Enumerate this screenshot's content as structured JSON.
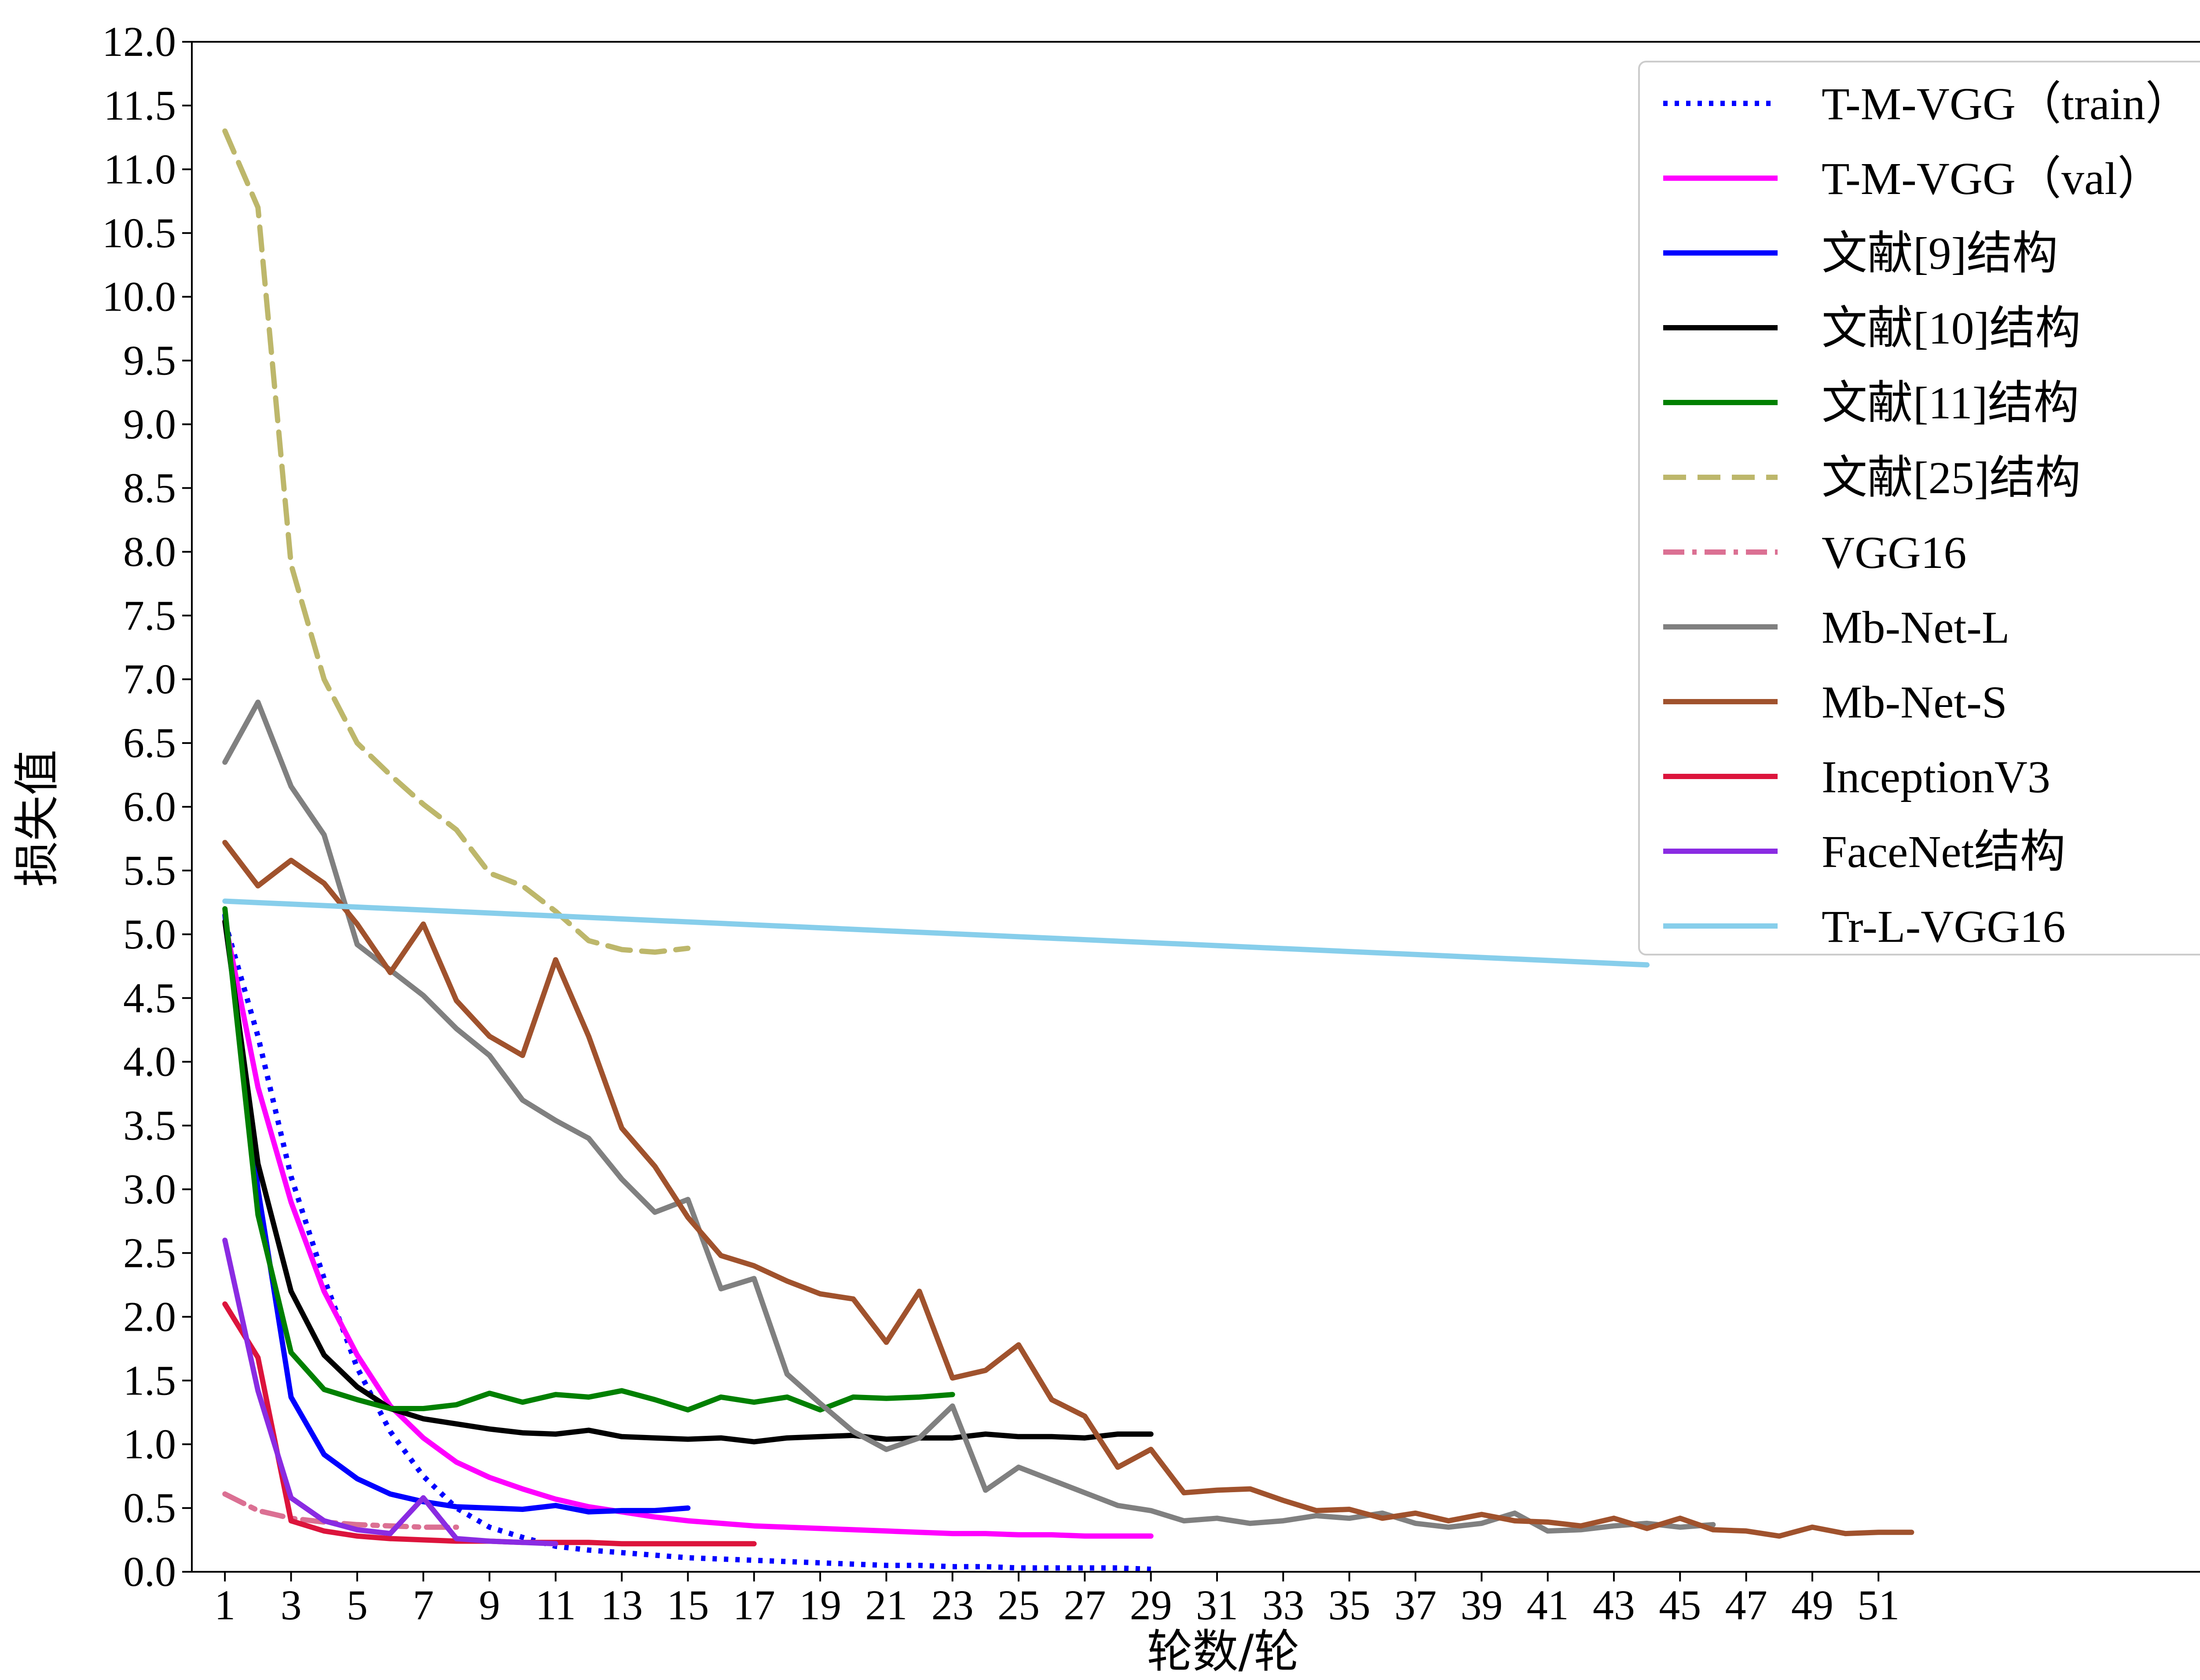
{
  "chart_data": {
    "type": "line",
    "title": "",
    "xlabel": "轮数/轮",
    "ylabel": "损失值",
    "xlim": [
      0,
      62
    ],
    "ylim": [
      0,
      12
    ],
    "xticks": [
      1,
      3,
      5,
      7,
      9,
      11,
      13,
      15,
      17,
      19,
      21,
      23,
      25,
      27,
      29,
      31,
      33,
      35,
      37,
      39,
      41,
      43,
      45,
      47,
      49,
      51
    ],
    "yticks": [
      "0.0",
      "0.5",
      "1.0",
      "1.5",
      "2.0",
      "2.5",
      "3.0",
      "3.5",
      "4.0",
      "4.5",
      "5.0",
      "5.5",
      "6.0",
      "6.5",
      "7.0",
      "7.5",
      "8.0",
      "8.5",
      "9.0",
      "9.5",
      "10.0",
      "10.5",
      "11.0",
      "11.5",
      "12.0"
    ],
    "grid": false,
    "legend_position": "top-right",
    "series": [
      {
        "name": "T-M-VGG（train）",
        "color": "#0000ff",
        "style": "dotted",
        "x": [
          1,
          2,
          3,
          4,
          5,
          6,
          7,
          8,
          9,
          10,
          11,
          12,
          13,
          14,
          15,
          16,
          17,
          18,
          19,
          20,
          21,
          22,
          23,
          24,
          25,
          26,
          27,
          28,
          29
        ],
        "y": [
          5.1,
          4.2,
          3.1,
          2.3,
          1.6,
          1.1,
          0.75,
          0.5,
          0.35,
          0.27,
          0.2,
          0.17,
          0.15,
          0.13,
          0.11,
          0.1,
          0.09,
          0.08,
          0.07,
          0.06,
          0.05,
          0.05,
          0.04,
          0.04,
          0.03,
          0.03,
          0.03,
          0.03,
          0.02
        ]
      },
      {
        "name": "T-M-VGG（val）",
        "color": "#ff00ff",
        "style": "solid",
        "x": [
          1,
          2,
          3,
          4,
          5,
          6,
          7,
          8,
          9,
          10,
          11,
          12,
          13,
          14,
          15,
          16,
          17,
          18,
          19,
          20,
          21,
          22,
          23,
          24,
          25,
          26,
          27,
          28,
          29
        ],
        "y": [
          5.1,
          3.8,
          2.9,
          2.2,
          1.7,
          1.3,
          1.05,
          0.86,
          0.74,
          0.65,
          0.57,
          0.51,
          0.47,
          0.43,
          0.4,
          0.38,
          0.36,
          0.35,
          0.34,
          0.33,
          0.32,
          0.31,
          0.3,
          0.3,
          0.29,
          0.29,
          0.28,
          0.28,
          0.28
        ]
      },
      {
        "name": "文献[9]结构",
        "color": "#0000ff",
        "style": "solid",
        "x": [
          1,
          2,
          3,
          4,
          5,
          6,
          7,
          8,
          9,
          10,
          11,
          12,
          13,
          14,
          15
        ],
        "y": [
          5.15,
          3.0,
          1.37,
          0.92,
          0.73,
          0.61,
          0.55,
          0.51,
          0.5,
          0.49,
          0.52,
          0.47,
          0.48,
          0.48,
          0.5
        ]
      },
      {
        "name": "文献[10]结构",
        "color": "#000000",
        "style": "solid",
        "x": [
          1,
          2,
          3,
          4,
          5,
          6,
          7,
          8,
          9,
          10,
          11,
          12,
          13,
          14,
          15,
          16,
          17,
          18,
          19,
          20,
          21,
          22,
          23,
          24,
          25,
          26,
          27,
          28,
          29
        ],
        "y": [
          5.1,
          3.2,
          2.2,
          1.7,
          1.45,
          1.28,
          1.2,
          1.16,
          1.12,
          1.09,
          1.08,
          1.11,
          1.06,
          1.05,
          1.04,
          1.05,
          1.02,
          1.05,
          1.06,
          1.07,
          1.04,
          1.05,
          1.05,
          1.08,
          1.06,
          1.06,
          1.05,
          1.08,
          1.08
        ]
      },
      {
        "name": "文献[11]结构",
        "color": "#008000",
        "style": "solid",
        "x": [
          1,
          2,
          3,
          4,
          5,
          6,
          7,
          8,
          9,
          10,
          11,
          12,
          13,
          14,
          15,
          16,
          17,
          18,
          19,
          20,
          21,
          22,
          23
        ],
        "y": [
          5.2,
          2.8,
          1.72,
          1.43,
          1.35,
          1.28,
          1.28,
          1.31,
          1.4,
          1.33,
          1.39,
          1.37,
          1.42,
          1.35,
          1.27,
          1.37,
          1.33,
          1.37,
          1.27,
          1.37,
          1.36,
          1.37,
          1.39
        ]
      },
      {
        "name": "文献[25]结构",
        "color": "#bdb76b",
        "style": "dashed",
        "x": [
          1,
          2,
          3,
          4,
          5,
          6,
          7,
          8,
          9,
          10,
          11,
          12,
          13,
          14,
          15
        ],
        "y": [
          11.3,
          10.7,
          7.9,
          7.0,
          6.5,
          6.25,
          6.02,
          5.82,
          5.48,
          5.38,
          5.18,
          4.95,
          4.88,
          4.86,
          4.89
        ]
      },
      {
        "name": "VGG16",
        "color": "#db7093",
        "style": "dashdot",
        "x": [
          1,
          2,
          3,
          4,
          5,
          6,
          7,
          8
        ],
        "y": [
          0.61,
          0.48,
          0.42,
          0.39,
          0.37,
          0.36,
          0.35,
          0.35
        ]
      },
      {
        "name": "Mb-Net-L",
        "color": "#808080",
        "style": "solid",
        "x": [
          1,
          2,
          3,
          4,
          5,
          6,
          7,
          8,
          9,
          10,
          11,
          12,
          13,
          14,
          15,
          16,
          17,
          18,
          19,
          20,
          21,
          22,
          23,
          24,
          25,
          26,
          27,
          28,
          29,
          30,
          31,
          32,
          33,
          34,
          35,
          36,
          37,
          38,
          39,
          40,
          41,
          42,
          43,
          44,
          45,
          46
        ],
        "y": [
          6.35,
          6.82,
          6.16,
          5.78,
          4.92,
          4.72,
          4.52,
          4.26,
          4.05,
          3.7,
          3.54,
          3.4,
          3.08,
          2.82,
          2.92,
          2.22,
          2.3,
          1.55,
          1.32,
          1.1,
          0.96,
          1.05,
          1.3,
          0.64,
          0.82,
          0.72,
          0.62,
          0.52,
          0.48,
          0.4,
          0.42,
          0.38,
          0.4,
          0.44,
          0.42,
          0.46,
          0.38,
          0.35,
          0.38,
          0.46,
          0.32,
          0.33,
          0.36,
          0.38,
          0.35,
          0.37
        ]
      },
      {
        "name": "Mb-Net-S",
        "color": "#a0522d",
        "style": "solid",
        "x": [
          1,
          2,
          3,
          4,
          5,
          6,
          7,
          8,
          9,
          10,
          11,
          12,
          13,
          14,
          15,
          16,
          17,
          18,
          19,
          20,
          21,
          22,
          23,
          24,
          25,
          26,
          27,
          28,
          29,
          30,
          31,
          32,
          33,
          34,
          35,
          36,
          37,
          38,
          39,
          40,
          41,
          42,
          43,
          44,
          45,
          46,
          47,
          48,
          49,
          50,
          51,
          52
        ],
        "y": [
          5.72,
          5.38,
          5.58,
          5.4,
          5.08,
          4.7,
          5.08,
          4.48,
          4.2,
          4.05,
          4.8,
          4.2,
          3.48,
          3.18,
          2.78,
          2.48,
          2.4,
          2.28,
          2.18,
          2.14,
          1.8,
          2.2,
          1.52,
          1.58,
          1.78,
          1.35,
          1.22,
          0.82,
          0.96,
          0.62,
          0.64,
          0.65,
          0.56,
          0.48,
          0.49,
          0.42,
          0.46,
          0.4,
          0.45,
          0.4,
          0.39,
          0.36,
          0.42,
          0.34,
          0.42,
          0.33,
          0.32,
          0.28,
          0.35,
          0.3,
          0.31,
          0.31
        ]
      },
      {
        "name": "InceptionV3",
        "color": "#dc143c",
        "style": "solid",
        "x": [
          1,
          2,
          3,
          4,
          5,
          6,
          7,
          8,
          9,
          10,
          11,
          12,
          13,
          14,
          15,
          16,
          17
        ],
        "y": [
          2.1,
          1.68,
          0.4,
          0.32,
          0.28,
          0.26,
          0.25,
          0.24,
          0.24,
          0.23,
          0.23,
          0.23,
          0.22,
          0.22,
          0.22,
          0.22,
          0.22
        ]
      },
      {
        "name": "FaceNet结构",
        "color": "#8a2be2",
        "style": "solid",
        "x": [
          1,
          2,
          3,
          4,
          5,
          6,
          7,
          8,
          9,
          10,
          11
        ],
        "y": [
          2.6,
          1.42,
          0.58,
          0.4,
          0.33,
          0.3,
          0.58,
          0.26,
          0.24,
          0.23,
          0.22
        ]
      },
      {
        "name": "Tr-L-VGG16",
        "color": "#87ceeb",
        "style": "solid",
        "x": [
          1,
          44
        ],
        "y": [
          5.26,
          4.76
        ]
      }
    ]
  }
}
